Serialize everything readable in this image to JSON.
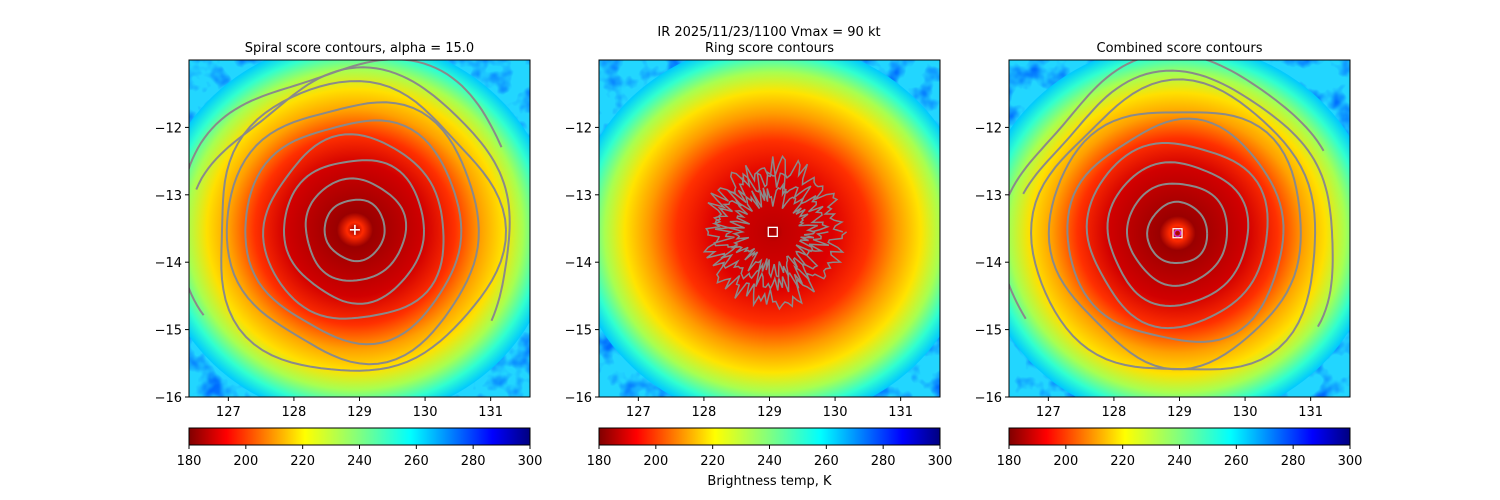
{
  "figure": {
    "suptitle_line1": "IR  2025/11/23/1100    Vmax = 90 kt",
    "colorbar_label": "Brightness temp, K"
  },
  "colors": {
    "contour": "#8a8a8a",
    "spiral_marker": "#ffffff",
    "ring_marker": "#ffffff",
    "combined_marker_outer": "#ffffff",
    "combined_marker_inner": "#cc33cc",
    "colormap": "jet_r"
  },
  "chart_data": [
    {
      "type": "heatmap",
      "title": "Spiral score contours, alpha = 15.0",
      "xlim": [
        126.4,
        131.6
      ],
      "ylim": [
        -16.0,
        -11.0
      ],
      "xticks": [
        127,
        128,
        129,
        130,
        131
      ],
      "yticks": [
        -12,
        -13,
        -14,
        -15,
        -16
      ],
      "storm_center": [
        128.93,
        -13.52
      ],
      "marker": "plus",
      "contours": "concentric_rings",
      "colorbar": {
        "min": 180,
        "max": 300,
        "ticks": [
          180,
          200,
          220,
          240,
          260,
          280,
          300
        ],
        "label": ""
      }
    },
    {
      "type": "heatmap",
      "title": "Ring score contours",
      "xlim": [
        126.4,
        131.6
      ],
      "ylim": [
        -16.0,
        -11.0
      ],
      "xticks": [
        127,
        128,
        129,
        130,
        131
      ],
      "yticks": [
        -12,
        -13,
        -14,
        -15,
        -16
      ],
      "storm_center": [
        129.05,
        -13.55
      ],
      "marker": "square",
      "contours": "noisy_ring",
      "colorbar": {
        "min": 180,
        "max": 300,
        "ticks": [
          180,
          200,
          220,
          240,
          260,
          280,
          300
        ],
        "label": "Brightness temp, K"
      }
    },
    {
      "type": "heatmap",
      "title": "Combined score contours",
      "xlim": [
        126.4,
        131.6
      ],
      "ylim": [
        -16.0,
        -11.0
      ],
      "xticks": [
        127,
        128,
        129,
        130,
        131
      ],
      "yticks": [
        -12,
        -13,
        -14,
        -15,
        -16
      ],
      "storm_center": [
        128.97,
        -13.57
      ],
      "marker": "circle",
      "contours": "concentric_rings",
      "colorbar": {
        "min": 180,
        "max": 300,
        "ticks": [
          180,
          200,
          220,
          240,
          260,
          280,
          300
        ],
        "label": ""
      }
    }
  ]
}
